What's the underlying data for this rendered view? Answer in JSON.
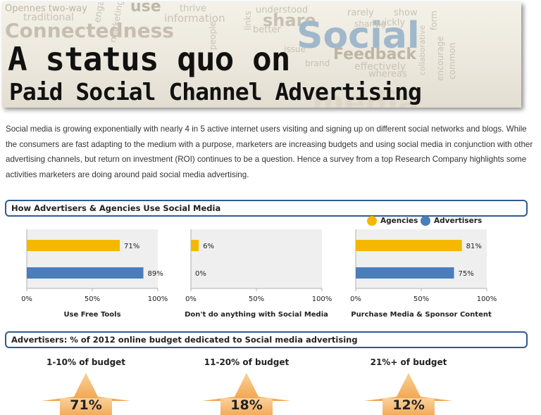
{
  "banner": {
    "title_line1": "A status quo on",
    "title_line2": "Paid Social Channel Advertising",
    "word_cloud": [
      "Opennes two-way",
      "traditional",
      "Connectedness",
      "use",
      "thrive",
      "information",
      "engaging",
      "marketing",
      "understood",
      "share",
      "rarely",
      "show",
      "Social",
      "Feedback",
      "quickly",
      "sharing",
      "brand",
      "effectively",
      "whereas",
      "better",
      "issue",
      "collaborative",
      "encourage",
      "common",
      "form",
      "links",
      "people",
      "media"
    ]
  },
  "intro": "Social media is growing exponentially with nearly 4 in 5 active internet users visiting and signing up on different social networks and blogs. While the consumers are fast adapting to the medium with a purpose, marketers are increasing budgets and using social media in conjunction with other advertising channels, but return on investment (ROI) continues to be a question. Hence a survey from a top Research Company highlights some activities marketers are doing around paid social media advertising.",
  "section1": {
    "title": "How Advertisers & Agencies Use Social Media"
  },
  "section2": {
    "title": "Advertisers: % of 2012 online budget dedicated to Social media advertising"
  },
  "legend": [
    {
      "name": "Agencies",
      "color": "#f5b800"
    },
    {
      "name": "Advertisers",
      "color": "#4a7ebb"
    }
  ],
  "colors": {
    "agencies": "#f5b800",
    "advertisers": "#4a7ebb",
    "plot_bg": "#efefef",
    "header_border": "#2f5a92",
    "star": "#f6b26b"
  },
  "chart_data": [
    {
      "type": "bar",
      "orientation": "horizontal",
      "xlabel": "Use Free Tools",
      "xlim": [
        0,
        100
      ],
      "ticks": [
        "0%",
        "50%",
        "100%"
      ],
      "series": [
        {
          "name": "Agencies",
          "values": [
            71
          ],
          "labels": [
            "71%"
          ]
        },
        {
          "name": "Advertisers",
          "values": [
            89
          ],
          "labels": [
            "89%"
          ]
        }
      ]
    },
    {
      "type": "bar",
      "orientation": "horizontal",
      "xlabel": "Don't do anything with Social Media",
      "xlim": [
        0,
        100
      ],
      "ticks": [
        "0%",
        "50%",
        "100%"
      ],
      "series": [
        {
          "name": "Agencies",
          "values": [
            6
          ],
          "labels": [
            "6%"
          ]
        },
        {
          "name": "Advertisers",
          "values": [
            0
          ],
          "labels": [
            "0%"
          ]
        }
      ]
    },
    {
      "type": "bar",
      "orientation": "horizontal",
      "xlabel": "Purchase Media & Sponsor Content",
      "xlim": [
        0,
        100
      ],
      "ticks": [
        "0%",
        "50%",
        "100%"
      ],
      "series": [
        {
          "name": "Agencies",
          "values": [
            81
          ],
          "labels": [
            "81%"
          ]
        },
        {
          "name": "Advertisers",
          "values": [
            75
          ],
          "labels": [
            "75%"
          ]
        }
      ]
    }
  ],
  "budget": [
    {
      "label": "1-10% of budget",
      "value": "71%"
    },
    {
      "label": "11-20% of budget",
      "value": "18%"
    },
    {
      "label": "21%+ of budget",
      "value": "12%"
    }
  ]
}
